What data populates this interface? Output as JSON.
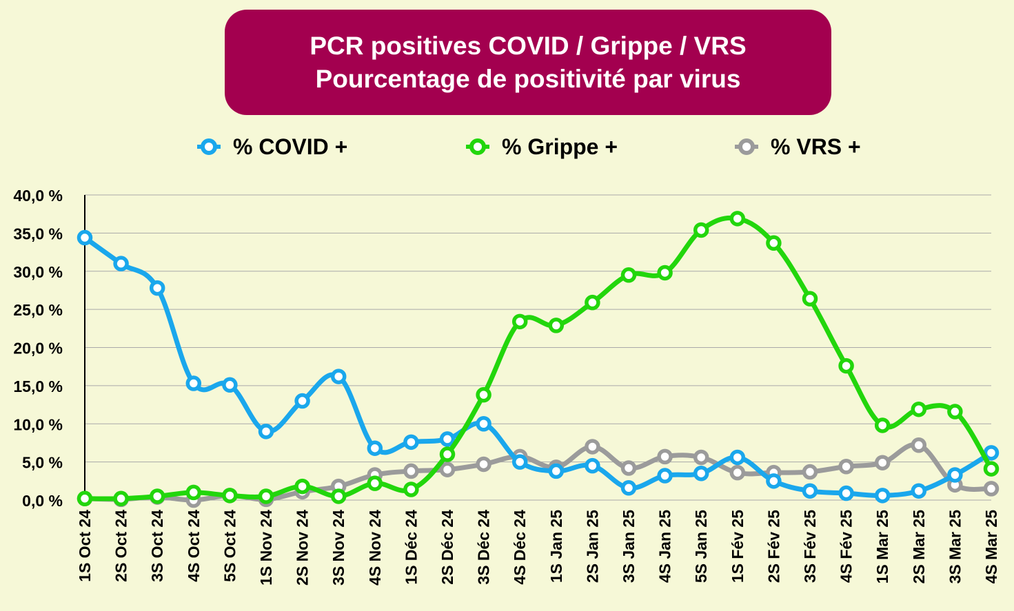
{
  "chart_data": {
    "type": "line",
    "title": "PCR positives COVID / Grippe / VRS",
    "subtitle": "Pourcentage de positivité par virus",
    "xlabel": "",
    "ylabel": "",
    "ylim": [
      0,
      40
    ],
    "yticks": [
      "0,0 %",
      "5,0 %",
      "10,0 %",
      "15,0 %",
      "20,0 %",
      "25,0 %",
      "30,0 %",
      "35,0 %",
      "40,0 %"
    ],
    "grid": true,
    "legend_position": "top",
    "categories": [
      "1S Oct 24",
      "2S Oct 24",
      "3S Oct 24",
      "4S Oct 24",
      "5S Oct 24",
      "1S Nov 24",
      "2S Nov 24",
      "3S Nov 24",
      "4S Nov 24",
      "1S Déc 24",
      "2S Déc 24",
      "3S Déc 24",
      "4S Déc 24",
      "1S Jan 25",
      "2S Jan 25",
      "3S Jan 25",
      "4S Jan 25",
      "5S Jan 25",
      "1S Fév 25",
      "2S Fév 25",
      "3S Fév 25",
      "4S Fév 25",
      "1S Mar 25",
      "2S Mar 25",
      "3S Mar 25",
      "4S Mar 25"
    ],
    "series": [
      {
        "name": "% COVID +",
        "color": "#1aa7ec",
        "values": [
          34.4,
          31.0,
          27.8,
          15.3,
          15.1,
          9.0,
          13.0,
          16.2,
          6.8,
          7.6,
          8.0,
          10.0,
          5.0,
          3.8,
          4.5,
          1.6,
          3.2,
          3.5,
          5.6,
          2.5,
          1.2,
          0.9,
          0.6,
          1.2,
          3.3,
          6.2
        ]
      },
      {
        "name": "% Grippe +",
        "color": "#22d60c",
        "values": [
          0.2,
          0.2,
          0.5,
          1.0,
          0.6,
          0.5,
          1.8,
          0.5,
          2.2,
          1.4,
          6.0,
          13.8,
          23.4,
          22.9,
          25.9,
          29.5,
          29.8,
          35.4,
          36.9,
          33.7,
          26.4,
          17.6,
          9.8,
          11.9,
          11.6,
          4.1
        ]
      },
      {
        "name": "% VRS +",
        "color": "#9b9b9b",
        "values": [
          0.2,
          0.1,
          0.4,
          0.0,
          0.6,
          0.1,
          1.1,
          1.8,
          3.3,
          3.8,
          4.0,
          4.7,
          5.7,
          4.3,
          7.0,
          4.2,
          5.7,
          5.6,
          3.6,
          3.6,
          3.7,
          4.4,
          4.9,
          7.2,
          2.0,
          1.5
        ]
      }
    ]
  }
}
